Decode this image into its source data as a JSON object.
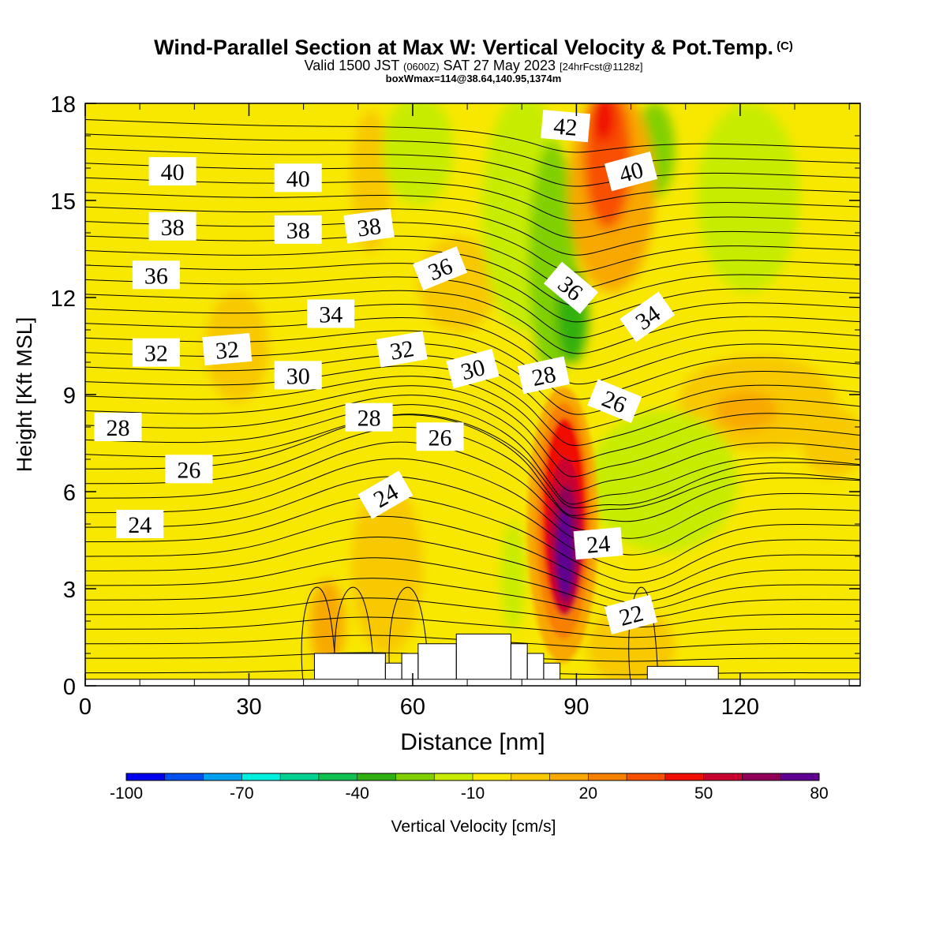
{
  "header": {
    "title": "Wind-Parallel Section at Max W: Vertical Velocity & Pot.Temp.",
    "copyright": "(C)",
    "valid_prefix": "Valid 1500 JST",
    "valid_utc": "(0600Z)",
    "valid_date": "SAT 27 May 2023",
    "forecast": "[24hrFcst@1128z]",
    "boxmax": "boxWmax=114@38.64,140.95,1374m"
  },
  "chart_data": {
    "type": "heatmap",
    "title": "Wind-Parallel Section at Max W: Vertical Velocity & Pot.Temp.",
    "xlabel": "Distance [nm]",
    "ylabel": "Height [Kft MSL]",
    "xlim": [
      0,
      142
    ],
    "ylim": [
      0,
      18
    ],
    "xticks": [
      "0",
      "30",
      "60",
      "90",
      "120"
    ],
    "yticks": [
      "0",
      "3",
      "6",
      "9",
      "12",
      "15",
      "18"
    ],
    "colorbar": {
      "label": "Vertical Velocity [cm/s]",
      "tick_labels": [
        "-100",
        "-70",
        "-40",
        "-10",
        "20",
        "50",
        "80"
      ],
      "colors": [
        "#0000f0",
        "#0050f0",
        "#00a0f0",
        "#00f0e0",
        "#00d090",
        "#10c050",
        "#30b010",
        "#80d000",
        "#c8ec00",
        "#f8e800",
        "#f8c800",
        "#f8a800",
        "#f88000",
        "#f85000",
        "#f01000",
        "#c80030",
        "#900058",
        "#600090"
      ]
    },
    "vertical_velocity_features": [
      {
        "x": 88,
        "y": 4.5,
        "value": 80
      },
      {
        "x": 95,
        "y": 17,
        "value": 40
      },
      {
        "x": 88,
        "y": 13,
        "value": -35
      },
      {
        "x": 100,
        "y": 6,
        "value": -15
      },
      {
        "x": 28,
        "y": 11,
        "value": 10
      },
      {
        "x": 48,
        "y": 4.5,
        "value": 10
      },
      {
        "x": 125,
        "y": 8.5,
        "value": 15
      }
    ],
    "theta_contour_labels": [
      {
        "text": "40",
        "x": 16,
        "y": 15.9,
        "angle": 0
      },
      {
        "text": "40",
        "x": 39,
        "y": 15.7,
        "angle": 0
      },
      {
        "text": "42",
        "x": 88,
        "y": 17.3,
        "angle": 5
      },
      {
        "text": "40",
        "x": 100,
        "y": 15.9,
        "angle": -15
      },
      {
        "text": "38",
        "x": 16,
        "y": 14.2,
        "angle": 0
      },
      {
        "text": "38",
        "x": 39,
        "y": 14.1,
        "angle": 0
      },
      {
        "text": "38",
        "x": 52,
        "y": 14.2,
        "angle": -8
      },
      {
        "text": "36",
        "x": 13,
        "y": 12.7,
        "angle": 0
      },
      {
        "text": "36",
        "x": 65,
        "y": 12.9,
        "angle": -22
      },
      {
        "text": "36",
        "x": 89,
        "y": 12.3,
        "angle": 40
      },
      {
        "text": "34",
        "x": 45,
        "y": 11.5,
        "angle": 0
      },
      {
        "text": "34",
        "x": 103,
        "y": 11.4,
        "angle": -35
      },
      {
        "text": "32",
        "x": 13,
        "y": 10.3,
        "angle": 0
      },
      {
        "text": "32",
        "x": 26,
        "y": 10.4,
        "angle": -5
      },
      {
        "text": "32",
        "x": 58,
        "y": 10.4,
        "angle": -10
      },
      {
        "text": "30",
        "x": 39,
        "y": 9.6,
        "angle": 0
      },
      {
        "text": "30",
        "x": 71,
        "y": 9.8,
        "angle": -15
      },
      {
        "text": "28",
        "x": 84,
        "y": 9.6,
        "angle": -12
      },
      {
        "text": "28",
        "x": 52,
        "y": 8.3,
        "angle": 0
      },
      {
        "text": "28",
        "x": 6,
        "y": 8.0,
        "angle": 0
      },
      {
        "text": "26",
        "x": 65,
        "y": 7.7,
        "angle": 0
      },
      {
        "text": "26",
        "x": 97,
        "y": 8.8,
        "angle": 22
      },
      {
        "text": "26",
        "x": 19,
        "y": 6.7,
        "angle": 0
      },
      {
        "text": "24",
        "x": 55,
        "y": 5.9,
        "angle": -30
      },
      {
        "text": "24",
        "x": 10,
        "y": 5.0,
        "angle": 0
      },
      {
        "text": "24",
        "x": 94,
        "y": 4.4,
        "angle": -5
      },
      {
        "text": "22",
        "x": 100,
        "y": 2.2,
        "angle": -15
      }
    ],
    "terrain": [
      {
        "x0": 42,
        "x1": 55,
        "height": 1.0
      },
      {
        "x0": 55,
        "x1": 58,
        "height": 0.7
      },
      {
        "x0": 58,
        "x1": 61,
        "height": 1.0
      },
      {
        "x0": 61,
        "x1": 68,
        "height": 1.3
      },
      {
        "x0": 68,
        "x1": 78,
        "height": 1.6
      },
      {
        "x0": 78,
        "x1": 81,
        "height": 1.3
      },
      {
        "x0": 81,
        "x1": 84,
        "height": 1.0
      },
      {
        "x0": 84,
        "x1": 87,
        "height": 0.7
      },
      {
        "x0": 103,
        "x1": 116,
        "height": 0.6
      }
    ]
  }
}
